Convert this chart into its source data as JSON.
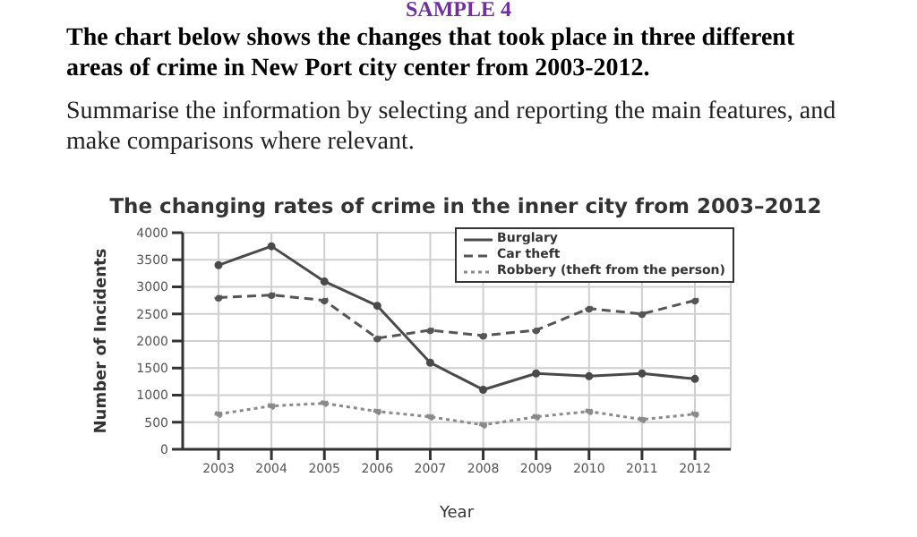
{
  "chart_data": {
    "type": "line",
    "title": "The changing rates of crime in the inner city from 2003–2012",
    "annotations": [
      "SAMPLE 4",
      "The chart below shows the changes that took place in three different areas of crime in New Port city center from 2003-2012.",
      "Summarise the information by selecting and reporting the main features, and make comparisons where relevant."
    ],
    "xlabel": "Year",
    "ylabel": "Number of Incidents",
    "categories": [
      "2003",
      "2004",
      "2005",
      "2006",
      "2007",
      "2008",
      "2009",
      "2010",
      "2011",
      "2012"
    ],
    "series": [
      {
        "name": "Burglary",
        "color": "#4a4a4a",
        "line_style": "solid",
        "values": [
          3400,
          3750,
          3100,
          2650,
          1600,
          1100,
          1400,
          1350,
          1400,
          1300
        ]
      },
      {
        "name": "Car theft",
        "color": "#555555",
        "line_style": "dashed",
        "values": [
          2800,
          2850,
          2750,
          2050,
          2200,
          2100,
          2200,
          2600,
          2500,
          2750
        ]
      },
      {
        "name": "Robbery (theft from the person)",
        "color": "#8a8a8a",
        "line_style": "dotted",
        "values": [
          650,
          800,
          850,
          700,
          600,
          450,
          600,
          700,
          550,
          650
        ]
      }
    ],
    "ylim": [
      0,
      4000
    ],
    "yticks": [
      0,
      500,
      1000,
      1500,
      2000,
      2500,
      3000,
      3500,
      4000
    ],
    "grid": true,
    "legend": "top right",
    "marker": "circle"
  }
}
